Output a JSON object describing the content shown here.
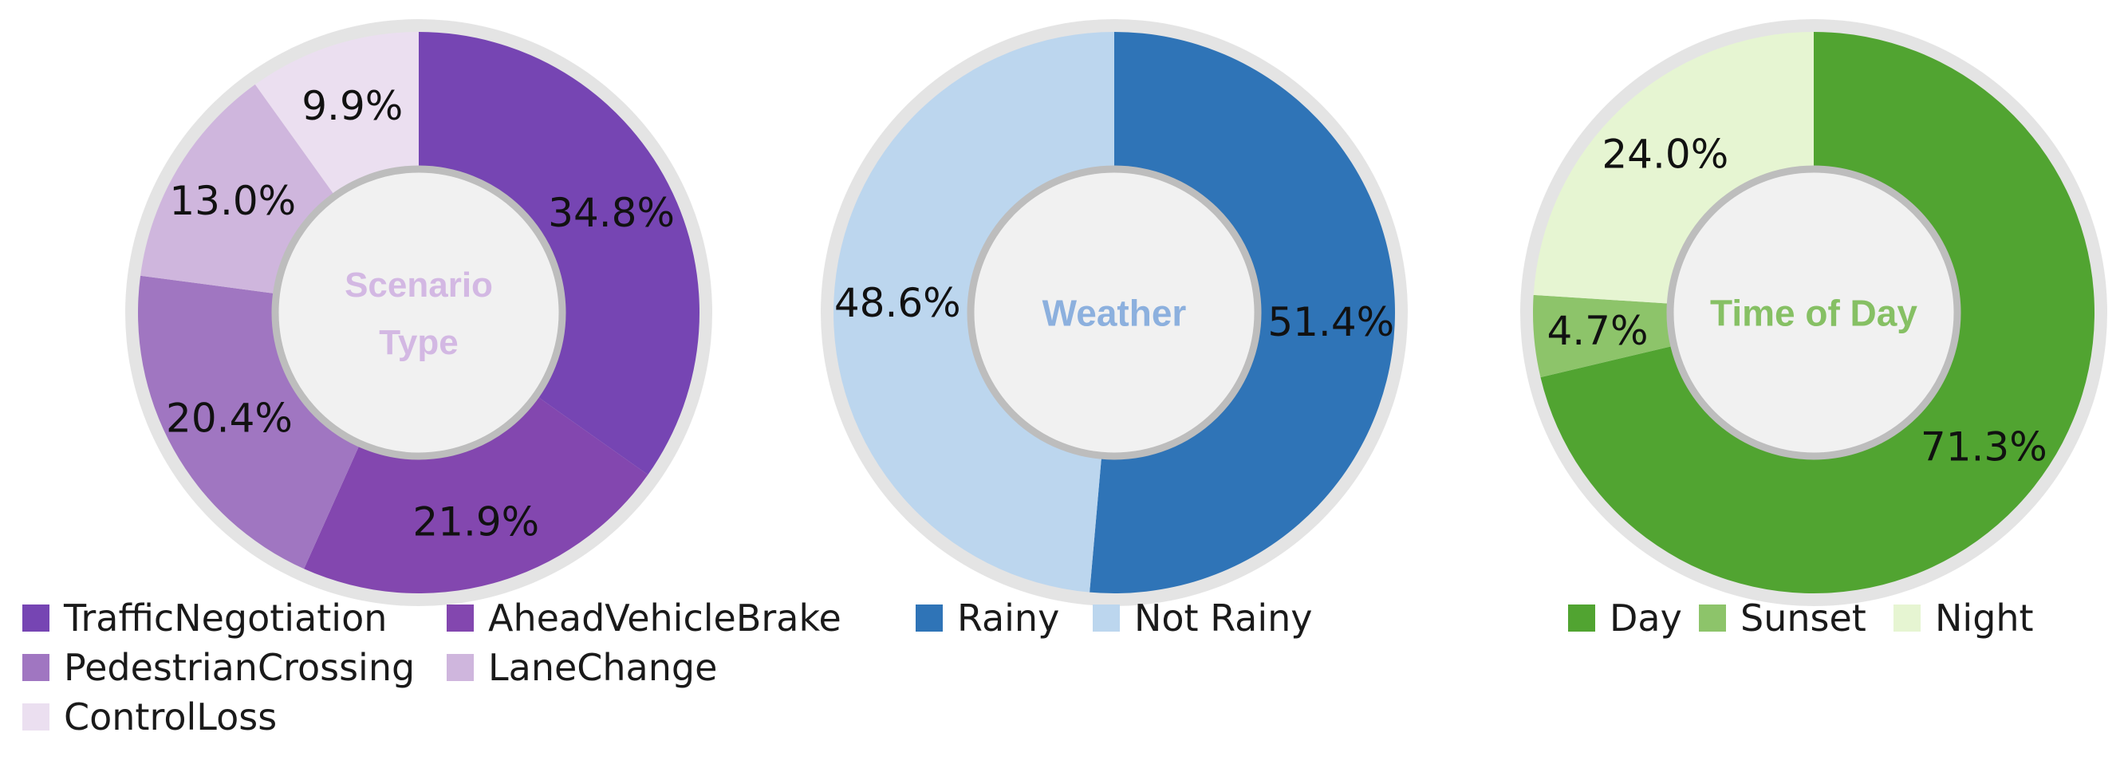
{
  "chart_data": [
    {
      "type": "pie",
      "center_label_lines": [
        "Scenario",
        "Type"
      ],
      "center_label_color": "#d3b8e3",
      "slices": [
        {
          "label": "TrafficNegotiation",
          "value": 34.8,
          "value_label": "34.8%",
          "color": "#7645b3"
        },
        {
          "label": "AheadVehicleBrake",
          "value": 21.9,
          "value_label": "21.9%",
          "color": "#8347af"
        },
        {
          "label": "PedestrianCrossing",
          "value": 20.4,
          "value_label": "20.4%",
          "color": "#a076c1"
        },
        {
          "label": "LaneChange",
          "value": 13.0,
          "value_label": "13.0%",
          "color": "#cfb6dd"
        },
        {
          "label": "ControlLoss",
          "value": 9.9,
          "value_label": "9.9%",
          "color": "#ebdff0"
        }
      ]
    },
    {
      "type": "pie",
      "center_label_lines": [
        "Weather"
      ],
      "center_label_color": "#8cb0de",
      "slices": [
        {
          "label": "Rainy",
          "value": 51.4,
          "value_label": "51.4%",
          "color": "#2f74b7"
        },
        {
          "label": "Not Rainy",
          "value": 48.6,
          "value_label": "48.6%",
          "color": "#bcd6ee"
        }
      ]
    },
    {
      "type": "pie",
      "center_label_lines": [
        "Time of Day"
      ],
      "center_label_color": "#86c064",
      "slices": [
        {
          "label": "Day",
          "value": 71.3,
          "value_label": "71.3%",
          "color": "#51a431"
        },
        {
          "label": "Sunset",
          "value": 4.7,
          "value_label": "4.7%",
          "color": "#8dc46a"
        },
        {
          "label": "Night",
          "value": 24.0,
          "value_label": "24.0%",
          "color": "#e6f5d2"
        }
      ]
    }
  ]
}
